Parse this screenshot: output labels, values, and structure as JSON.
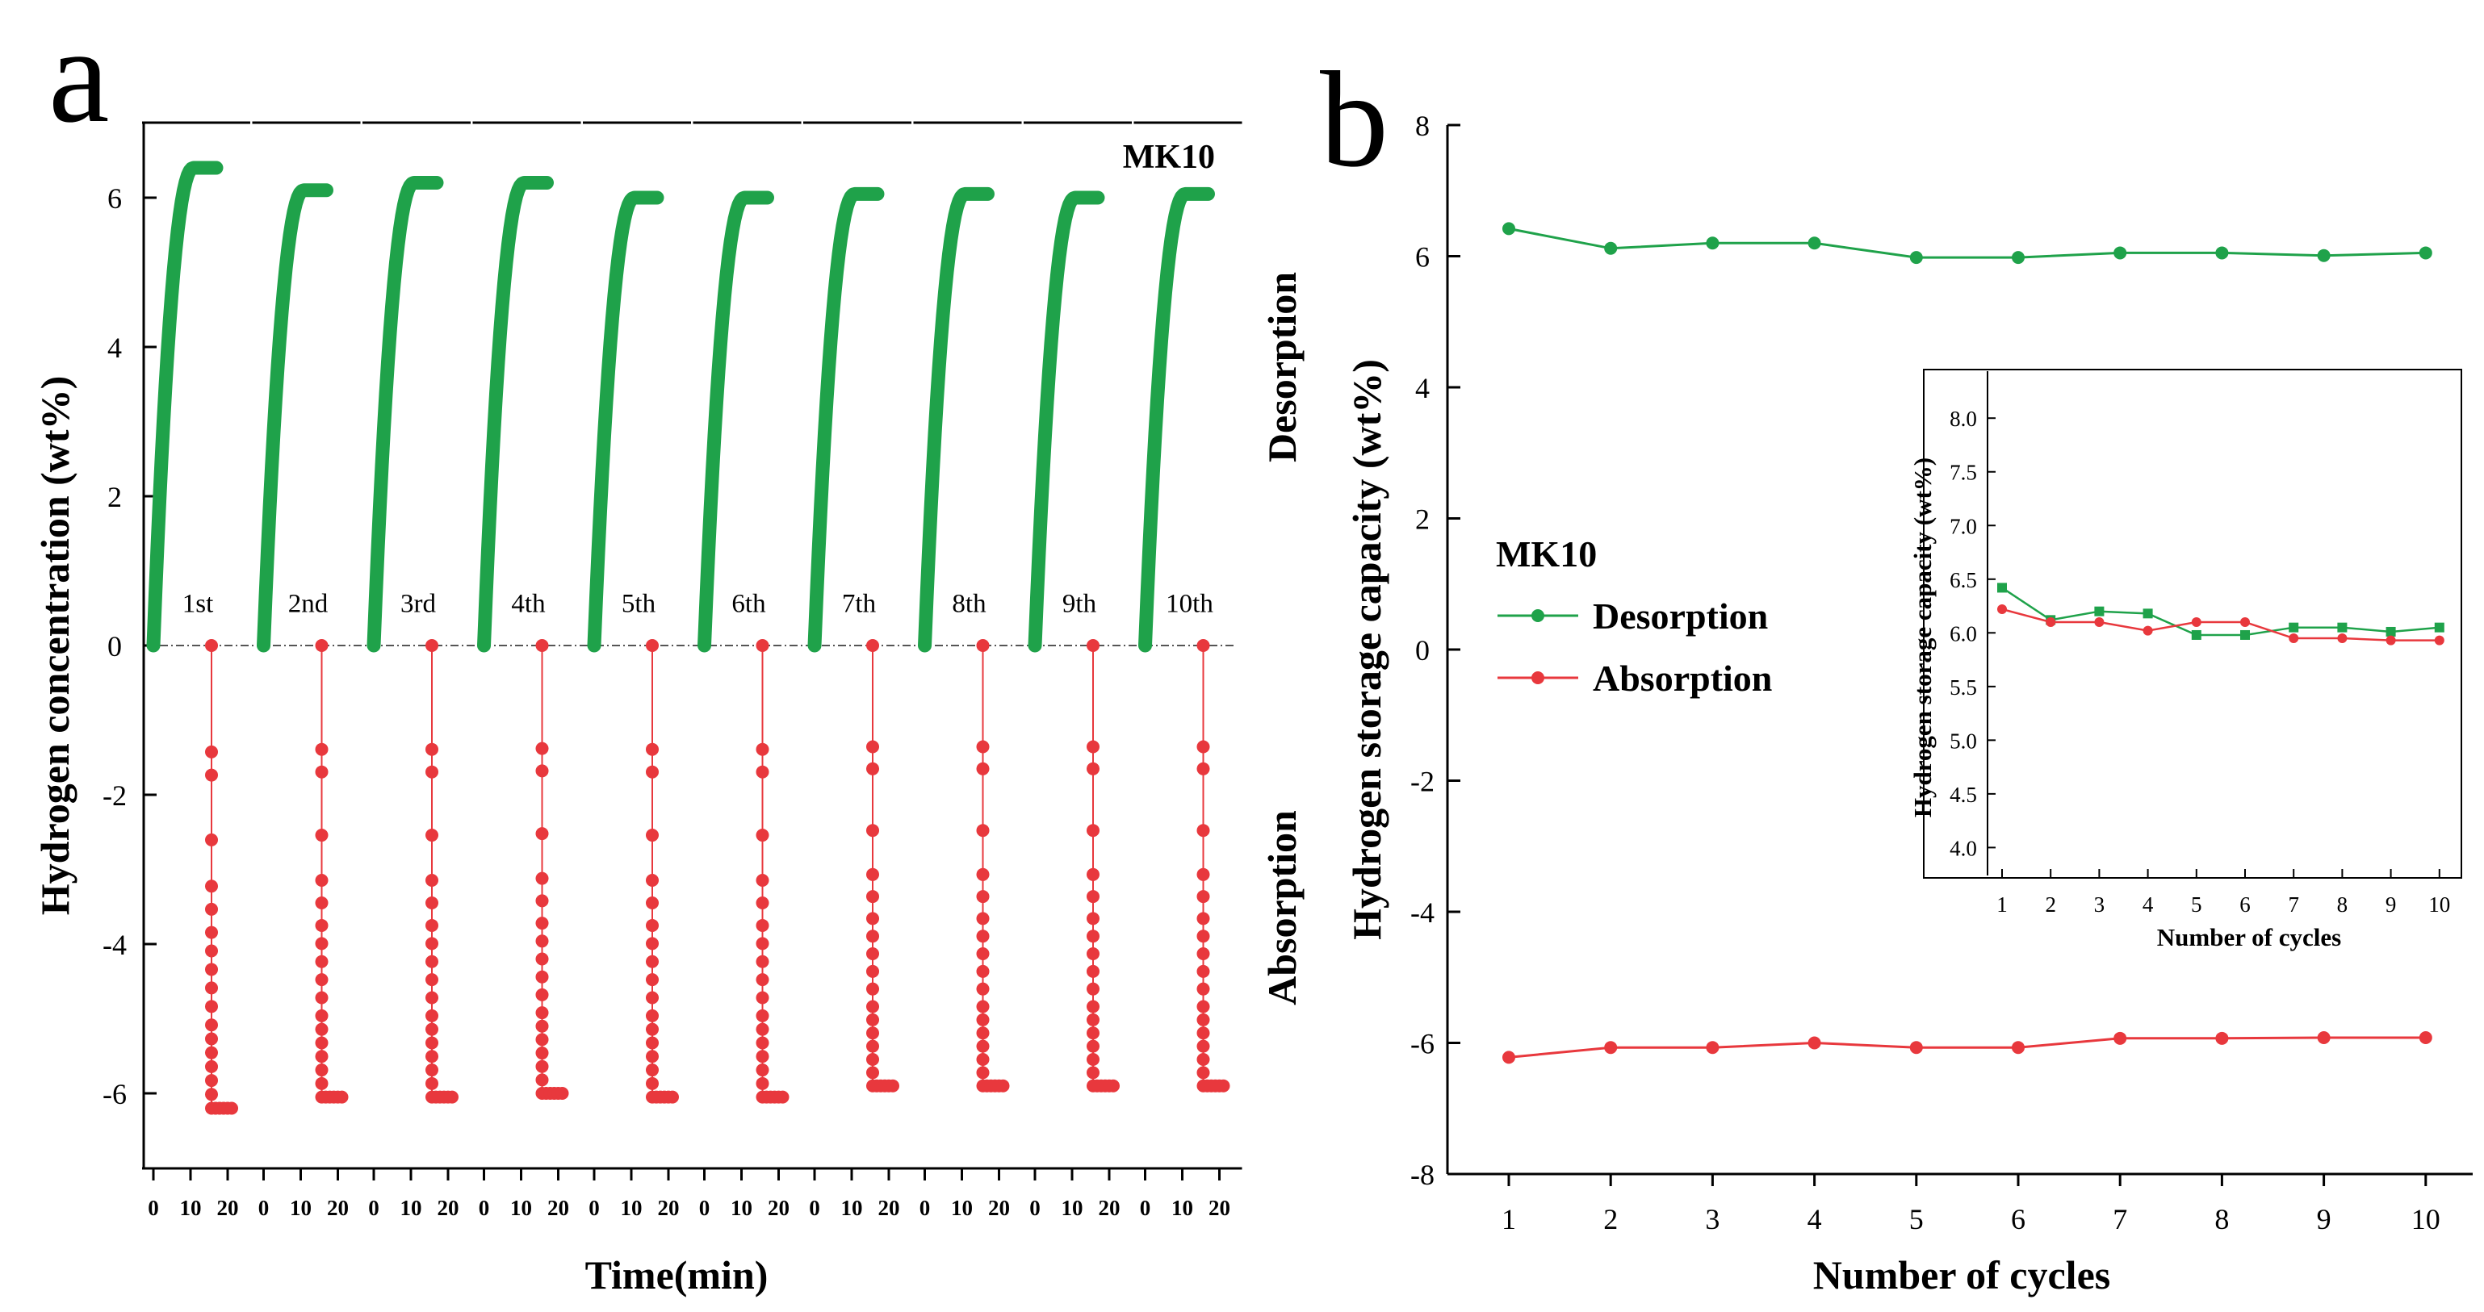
{
  "chart_data": [
    {
      "panel": "a",
      "type": "line",
      "title": "MK10",
      "xlabel": "Time(min)",
      "ylabel": "Hydrogen concentration (wt%)",
      "ylim": [
        -7,
        7
      ],
      "y_ticks": [
        "-6",
        "-4",
        "-2",
        "0",
        "2",
        "4",
        "6"
      ],
      "x_ticks_per_cycle": [
        "0",
        "10",
        "20"
      ],
      "cycle_labels": [
        "1st",
        "2nd",
        "3rd",
        "4th",
        "5th",
        "6th",
        "7th",
        "8th",
        "9th",
        "10th"
      ],
      "series": [
        {
          "name": "Desorption",
          "color": "#1fa24a",
          "values": [
            6.4,
            6.1,
            6.2,
            6.2,
            6.0,
            6.0,
            6.05,
            6.05,
            6.0,
            6.05
          ]
        },
        {
          "name": "Absorption",
          "color": "#e8383d",
          "values": [
            -6.2,
            -6.05,
            -6.05,
            -6.0,
            -6.05,
            -6.05,
            -5.9,
            -5.9,
            -5.9,
            -5.9
          ]
        }
      ]
    },
    {
      "panel": "b",
      "type": "line",
      "xlabel": "Number of cycles",
      "ylabel": "Hydrogen storage capacity (wt%)",
      "side_label_top": "Desorption",
      "side_label_bottom": "Absorption",
      "legend_title": "MK10",
      "ylim": [
        -8,
        8
      ],
      "y_ticks": [
        "-8",
        "-6",
        "-4",
        "-2",
        "0",
        "2",
        "4",
        "6",
        "8"
      ],
      "categories": [
        "1",
        "2",
        "3",
        "4",
        "5",
        "6",
        "7",
        "8",
        "9",
        "10"
      ],
      "series": [
        {
          "name": "Desorption",
          "color": "#1fa24a",
          "values": [
            6.42,
            6.12,
            6.2,
            6.2,
            5.98,
            5.98,
            6.05,
            6.05,
            6.01,
            6.05
          ]
        },
        {
          "name": "Absorption",
          "color": "#e8383d",
          "values": [
            -6.22,
            -6.07,
            -6.07,
            -6.0,
            -6.07,
            -6.07,
            -5.93,
            -5.93,
            -5.92,
            -5.92
          ]
        }
      ],
      "inset": {
        "xlabel": "Number of cycles",
        "ylabel": "Hydrogen storage capacity (wt%)",
        "ylim": [
          3.8,
          8.4
        ],
        "y_ticks": [
          "4.0",
          "4.5",
          "5.0",
          "5.5",
          "6.0",
          "6.5",
          "7.0",
          "7.5",
          "8.0"
        ],
        "categories": [
          "1",
          "2",
          "3",
          "4",
          "5",
          "6",
          "7",
          "8",
          "9",
          "10"
        ],
        "series": [
          {
            "name": "Desorption",
            "color": "#1fa24a",
            "values": [
              6.42,
              6.12,
              6.2,
              6.18,
              5.98,
              5.98,
              6.05,
              6.05,
              6.01,
              6.05
            ]
          },
          {
            "name": "Absorption",
            "color": "#e8383d",
            "values": [
              6.22,
              6.1,
              6.1,
              6.02,
              6.1,
              6.1,
              5.95,
              5.95,
              5.93,
              5.93
            ]
          }
        ]
      }
    }
  ]
}
